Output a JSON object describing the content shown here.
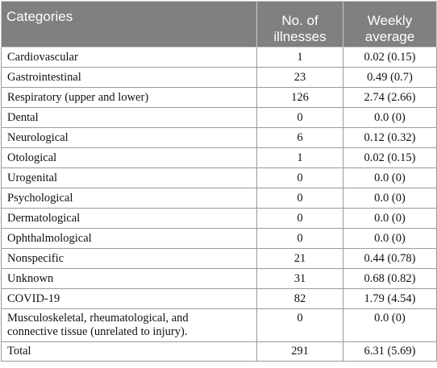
{
  "table": {
    "headers": {
      "category": "Categories",
      "count_line1": "No. of",
      "count_line2": "illnesses",
      "avg_line1": "Weekly",
      "avg_line2": "average"
    },
    "rows": [
      {
        "category": "Cardiovascular",
        "count": "1",
        "average": "0.02 (0.15)"
      },
      {
        "category": "Gastrointestinal",
        "count": "23",
        "average": "0.49 (0.7)"
      },
      {
        "category": "Respiratory (upper and lower)",
        "count": "126",
        "average": "2.74 (2.66)"
      },
      {
        "category": "Dental",
        "count": "0",
        "average": "0.0 (0)"
      },
      {
        "category": "Neurological",
        "count": "6",
        "average": "0.12 (0.32)"
      },
      {
        "category": "Otological",
        "count": "1",
        "average": "0.02 (0.15)"
      },
      {
        "category": "Urogenital",
        "count": "0",
        "average": "0.0 (0)"
      },
      {
        "category": "Psychological",
        "count": "0",
        "average": "0.0 (0)"
      },
      {
        "category": "Dermatological",
        "count": "0",
        "average": "0.0 (0)"
      },
      {
        "category": "Ophthalmological",
        "count": "0",
        "average": "0.0 (0)"
      },
      {
        "category": "Nonspecific",
        "count": "21",
        "average": "0.44 (0.78)"
      },
      {
        "category": "Unknown",
        "count": "31",
        "average": "0.68 (0.82)"
      },
      {
        "category": "COVID-19",
        "count": "82",
        "average": "1.79 (4.54)"
      },
      {
        "category_line1": "Musculoskeletal, rheumatological, and",
        "category_line2": "connective tissue (unrelated to injury).",
        "count": "0",
        "average": "0.0 (0)"
      }
    ],
    "total": {
      "category": "Total",
      "count": "291",
      "average": "6.31 (5.69)"
    }
  }
}
